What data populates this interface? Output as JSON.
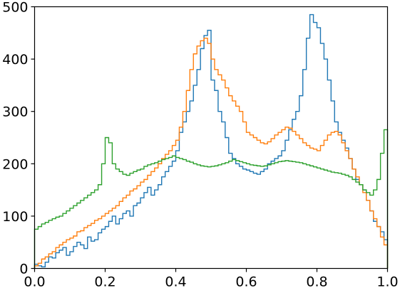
{
  "chart_data": {
    "type": "histogram-step",
    "xlim": [
      0.0,
      1.0
    ],
    "ylim": [
      0,
      500
    ],
    "x_ticks": [
      "0.0",
      "0.2",
      "0.4",
      "0.6",
      "0.8",
      "1.0"
    ],
    "y_ticks": [
      "0",
      "100",
      "200",
      "300",
      "400",
      "500"
    ],
    "grid": false,
    "legend": "none",
    "bin_width": 0.01,
    "series": [
      {
        "color": "#1f77b4",
        "values": [
          8,
          5,
          3,
          12,
          22,
          20,
          30,
          35,
          40,
          25,
          32,
          42,
          50,
          45,
          38,
          60,
          52,
          55,
          68,
          75,
          80,
          90,
          100,
          85,
          95,
          105,
          110,
          100,
          120,
          125,
          135,
          145,
          155,
          140,
          150,
          160,
          175,
          185,
          195,
          205,
          225,
          260,
          280,
          300,
          320,
          350,
          380,
          420,
          445,
          455,
          360,
          340,
          300,
          280,
          250,
          220,
          210,
          200,
          195,
          190,
          188,
          185,
          182,
          180,
          185,
          190,
          200,
          205,
          210,
          215,
          225,
          245,
          265,
          285,
          300,
          330,
          380,
          440,
          485,
          470,
          460,
          430,
          400,
          360,
          320,
          280,
          260,
          245,
          230,
          210,
          190,
          170,
          160,
          150,
          130,
          110,
          90,
          80,
          70,
          55
        ]
      },
      {
        "color": "#ff7f0e",
        "values": [
          5,
          10,
          18,
          22,
          28,
          32,
          40,
          45,
          50,
          55,
          58,
          62,
          70,
          72,
          78,
          82,
          86,
          92,
          95,
          100,
          105,
          110,
          115,
          120,
          128,
          135,
          140,
          148,
          152,
          158,
          165,
          170,
          178,
          185,
          192,
          200,
          210,
          218,
          225,
          235,
          245,
          270,
          300,
          340,
          380,
          410,
          425,
          435,
          440,
          430,
          400,
          380,
          370,
          360,
          345,
          330,
          320,
          310,
          300,
          280,
          260,
          255,
          250,
          245,
          240,
          238,
          242,
          248,
          255,
          260,
          265,
          270,
          268,
          262,
          255,
          248,
          240,
          235,
          230,
          228,
          225,
          235,
          245,
          255,
          260,
          262,
          255,
          240,
          225,
          210,
          190,
          175,
          160,
          145,
          130,
          110,
          95,
          80,
          60,
          45
        ]
      },
      {
        "color": "#2ca02c",
        "values": [
          75,
          80,
          85,
          88,
          92,
          95,
          98,
          100,
          105,
          110,
          115,
          120,
          125,
          130,
          135,
          140,
          145,
          150,
          160,
          200,
          250,
          240,
          200,
          190,
          185,
          180,
          178,
          182,
          185,
          188,
          190,
          195,
          198,
          200,
          202,
          205,
          208,
          210,
          212,
          215,
          212,
          210,
          208,
          205,
          203,
          200,
          198,
          196,
          195,
          194,
          195,
          196,
          198,
          200,
          202,
          205,
          208,
          206,
          204,
          202,
          200,
          198,
          197,
          196,
          195,
          196,
          198,
          200,
          202,
          204,
          205,
          206,
          205,
          204,
          203,
          202,
          200,
          198,
          196,
          194,
          192,
          190,
          188,
          186,
          184,
          183,
          182,
          180,
          178,
          175,
          170,
          165,
          160,
          150,
          145,
          140,
          150,
          170,
          220,
          265
        ]
      }
    ]
  }
}
